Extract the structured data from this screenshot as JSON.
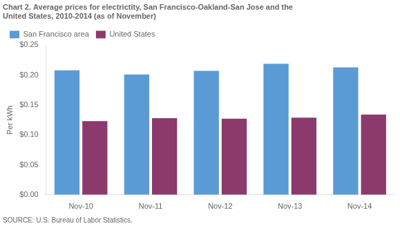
{
  "chart_data": {
    "type": "bar",
    "title": [
      "Chart 2. Average prices for electrictity, San Francisco-Oakland-San Jose and the",
      "United States, 2010-2014 (as of November)"
    ],
    "y_label": "Per kWh",
    "annotations": [
      "SOURCE: U.S. Bureau of Labor Statistics."
    ],
    "categories": [
      "Nov-10",
      "Nov-11",
      "Nov-12",
      "Nov-13",
      "Nov-14"
    ],
    "series": [
      {
        "name": "San Francisco area",
        "color": "#5B9BD5",
        "values": [
          0.208,
          0.201,
          0.207,
          0.219,
          0.213
        ]
      },
      {
        "name": "United States",
        "color": "#8B3A6B",
        "values": [
          0.123,
          0.128,
          0.127,
          0.129,
          0.134
        ]
      }
    ],
    "ylim": [
      0,
      0.25
    ],
    "yticks": [
      {
        "value": 0.0,
        "label": "$0.00"
      },
      {
        "value": 0.05,
        "label": "$0.05"
      },
      {
        "value": 0.1,
        "label": "$0.10"
      },
      {
        "value": 0.15,
        "label": "$0.15"
      },
      {
        "value": 0.2,
        "label": "$0.20"
      },
      {
        "value": 0.25,
        "label": "$0.25"
      }
    ],
    "grid": false,
    "legend": "upper left"
  }
}
